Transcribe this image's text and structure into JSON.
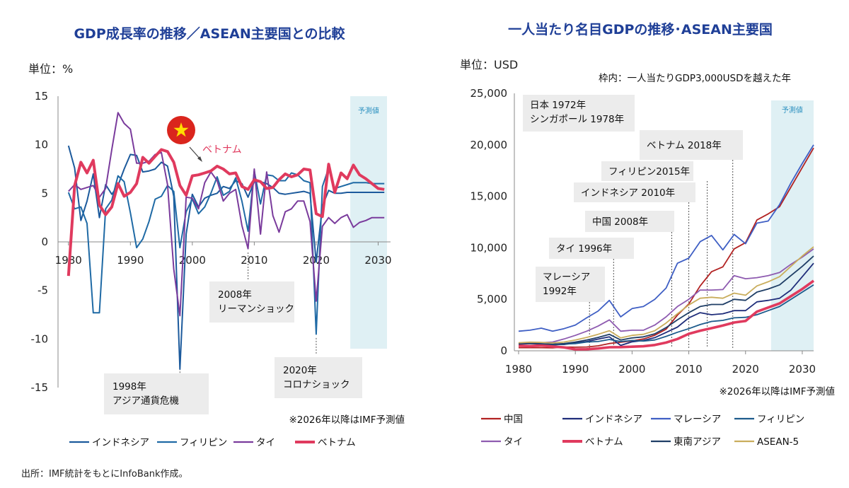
{
  "source": "出所：IMF統計をもとにInfoBank作成。",
  "chart_data": [
    {
      "type": "line",
      "title": "GDP成長率の推移／ASEAN主要国との比較",
      "unit_label": "単位：%",
      "forecast_label": "予測値",
      "forecast_from": 2025.5,
      "note": "※2026年以降はIMF予測値",
      "x_ticks": [
        1980,
        1990,
        2000,
        2010,
        2020,
        2030
      ],
      "y_ticks": [
        15,
        10,
        5,
        0,
        -5,
        -10,
        -15
      ],
      "ylim": [
        -15,
        15
      ],
      "xlim": [
        1979,
        2032
      ],
      "callout_label": "ベトナム",
      "annotations": [
        {
          "text_lines": [
            "1998年",
            "アジア通貨危機"
          ],
          "year": 1998
        },
        {
          "text_lines": [
            "2008年",
            "リーマンショック"
          ],
          "year": 2009
        },
        {
          "text_lines": [
            "2020年",
            "コロナショック"
          ],
          "year": 2020
        }
      ],
      "colors": {
        "indonesia": "#1c5a9c",
        "philippines": "#1f6aa5",
        "thailand": "#7a3b9c",
        "vietnam": "#e03a5e",
        "forecast": "#dff0f4",
        "flag": "#da251d",
        "star": "#ffde00"
      },
      "x": [
        1980,
        1981,
        1982,
        1983,
        1984,
        1985,
        1986,
        1987,
        1988,
        1989,
        1990,
        1991,
        1992,
        1993,
        1994,
        1995,
        1996,
        1997,
        1998,
        1999,
        2000,
        2001,
        2002,
        2003,
        2004,
        2005,
        2006,
        2007,
        2008,
        2009,
        2010,
        2011,
        2012,
        2013,
        2014,
        2015,
        2016,
        2017,
        2018,
        2019,
        2020,
        2021,
        2022,
        2023,
        2024,
        2025,
        2026,
        2027,
        2028,
        2029,
        2030,
        2031
      ],
      "series": [
        {
          "name": "インドネシア",
          "key": "indonesia",
          "values": [
            9.9,
            7.6,
            2.2,
            4.2,
            7.0,
            2.5,
            5.9,
            4.9,
            5.8,
            7.5,
            9.0,
            8.9,
            7.2,
            7.3,
            7.5,
            8.2,
            7.8,
            4.7,
            -13.1,
            0.8,
            4.9,
            3.6,
            4.5,
            4.8,
            5.0,
            5.7,
            5.5,
            6.3,
            6.0,
            4.6,
            6.2,
            6.2,
            6.0,
            5.6,
            5.0,
            4.9,
            5.0,
            5.1,
            5.2,
            5.0,
            -2.1,
            3.7,
            5.3,
            5.0,
            5.0,
            5.1,
            5.1,
            5.1,
            5.1,
            5.1,
            5.1,
            5.1
          ]
        },
        {
          "name": "フィリピン",
          "key": "philippines",
          "values": [
            5.1,
            3.4,
            3.6,
            1.9,
            -7.3,
            -7.3,
            3.4,
            4.3,
            6.8,
            6.2,
            3.0,
            -0.6,
            0.3,
            2.1,
            4.4,
            4.7,
            5.8,
            5.2,
            -0.6,
            3.1,
            4.4,
            2.9,
            3.6,
            5.0,
            6.7,
            4.8,
            5.2,
            6.6,
            4.2,
            1.1,
            7.3,
            3.9,
            6.9,
            6.8,
            6.3,
            6.3,
            7.1,
            6.9,
            6.3,
            6.1,
            -9.5,
            5.7,
            7.6,
            5.5,
            5.7,
            5.9,
            6.1,
            6.1,
            6.1,
            6.0,
            6.0,
            6.0
          ]
        },
        {
          "name": "タイ",
          "key": "thailand",
          "values": [
            5.2,
            5.9,
            5.4,
            5.6,
            5.8,
            4.6,
            5.5,
            9.5,
            13.3,
            12.2,
            11.6,
            8.1,
            8.1,
            8.3,
            9.0,
            9.2,
            5.9,
            -2.8,
            -7.6,
            4.6,
            4.5,
            3.4,
            6.1,
            7.2,
            6.3,
            4.2,
            5.0,
            5.4,
            1.7,
            -0.7,
            7.5,
            0.8,
            7.2,
            2.7,
            1.0,
            3.1,
            3.4,
            4.2,
            4.2,
            2.1,
            -6.1,
            1.6,
            2.5,
            1.9,
            2.5,
            2.8,
            1.5,
            2.0,
            2.2,
            2.5,
            2.5,
            2.5
          ]
        },
        {
          "name": "ベトナム",
          "key": "vietnam",
          "values": [
            -3.5,
            5.8,
            8.2,
            7.1,
            8.4,
            3.8,
            2.8,
            3.6,
            6.0,
            4.7,
            5.1,
            6.0,
            8.7,
            8.1,
            8.8,
            9.5,
            9.3,
            8.2,
            5.8,
            4.8,
            6.8,
            6.9,
            7.1,
            7.3,
            7.8,
            7.5,
            7.0,
            7.1,
            5.7,
            5.4,
            6.4,
            6.2,
            5.5,
            5.6,
            6.4,
            7.0,
            6.7,
            6.9,
            7.5,
            7.4,
            2.9,
            2.6,
            8.0,
            5.1,
            7.1,
            6.5,
            7.9,
            6.9,
            6.5,
            6.0,
            5.5,
            5.4
          ]
        }
      ]
    },
    {
      "type": "line",
      "title": "一人当たり名目GDPの推移･ASEAN主要国",
      "unit_label": "単位：USD",
      "subtitle": "枠内：一人当たりGDP3,000USDを越えた年",
      "forecast_label": "予測値",
      "forecast_from": 2024.5,
      "note": "※2026年以降はIMF予測値",
      "x_ticks": [
        1980,
        1990,
        2000,
        2010,
        2020,
        2030
      ],
      "y_ticks": [
        25000,
        20000,
        15000,
        10000,
        5000,
        0
      ],
      "y_tick_labels": [
        "25,000",
        "20,000",
        "15,000",
        "10,000",
        "5,000",
        "0"
      ],
      "ylim": [
        0,
        25000
      ],
      "xlim": [
        1980,
        2032
      ],
      "annotations": [
        {
          "text_lines": [
            "日本 1972年",
            "シンガポール 1978年"
          ],
          "year": null
        },
        {
          "text_lines": [
            "ベトナム 2018年"
          ],
          "year": 2017
        },
        {
          "text_lines": [
            "フィリピン2015年"
          ],
          "year": 2013
        },
        {
          "text_lines": [
            "インドネシア 2010年"
          ],
          "year": 2010
        },
        {
          "text_lines": [
            "中国 2008年"
          ],
          "year": 2006
        },
        {
          "text_lines": [
            "タイ 1996年"
          ],
          "year": 1996
        },
        {
          "text_lines": [
            "マレーシア",
            "1992年"
          ],
          "year": 1992
        }
      ],
      "colors": {
        "china": "#b22222",
        "indonesia": "#1f2d7a",
        "malaysia": "#3f5fc4",
        "philippines": "#1d5b8c",
        "thailand": "#8e5bb0",
        "vietnam": "#e03a5e",
        "sea": "#1f3e66",
        "asean5": "#c9ad5c",
        "forecast": "#dff0f4"
      },
      "x": [
        1980,
        1982,
        1984,
        1986,
        1988,
        1990,
        1992,
        1994,
        1996,
        1998,
        2000,
        2002,
        2004,
        2006,
        2008,
        2010,
        2012,
        2014,
        2016,
        2018,
        2020,
        2022,
        2024,
        2026,
        2028,
        2030,
        2032
      ],
      "series": [
        {
          "name": "中国",
          "key": "china",
          "values": [
            300,
            300,
            300,
            290,
            370,
            350,
            370,
            480,
            710,
            830,
            960,
            1150,
            1510,
            2100,
            3470,
            4550,
            6300,
            7680,
            8150,
            9900,
            10500,
            12700,
            13300,
            14000,
            15900,
            17800,
            19700
          ]
        },
        {
          "name": "インドネシア",
          "key": "indonesia",
          "values": [
            670,
            720,
            660,
            600,
            610,
            770,
            900,
            1130,
            1350,
            520,
            870,
            1000,
            1280,
            1780,
            2300,
            3200,
            3700,
            3500,
            3600,
            3900,
            3900,
            4750,
            4900,
            5100,
            5900,
            7200,
            8500
          ]
        },
        {
          "name": "マレーシア",
          "key": "malaysia",
          "values": [
            1900,
            2000,
            2200,
            1900,
            2150,
            2500,
            3200,
            3850,
            4900,
            3300,
            4100,
            4300,
            5000,
            6100,
            8500,
            9000,
            10600,
            11200,
            9800,
            11300,
            10400,
            12400,
            12600,
            14200,
            16300,
            18200,
            20000
          ]
        },
        {
          "name": "フィリピン",
          "key": "philippines",
          "values": [
            720,
            770,
            610,
            560,
            650,
            700,
            850,
            900,
            1100,
            900,
            1000,
            950,
            1050,
            1400,
            1800,
            2150,
            2550,
            2850,
            2950,
            3200,
            3250,
            3500,
            3900,
            4300,
            5000,
            5700,
            6400
          ]
        },
        {
          "name": "タイ",
          "key": "thailand",
          "values": [
            700,
            750,
            790,
            850,
            1150,
            1500,
            1900,
            2400,
            3000,
            1900,
            2000,
            2000,
            2500,
            3300,
            4300,
            5000,
            5900,
            5900,
            5950,
            7300,
            7000,
            7100,
            7300,
            7600,
            8400,
            9100,
            9900
          ]
        },
        {
          "name": "ベトナム",
          "key": "vietnam",
          "values": [
            500,
            450,
            520,
            420,
            330,
            140,
            150,
            230,
            340,
            360,
            400,
            440,
            560,
            800,
            1150,
            1650,
            1950,
            2200,
            2450,
            2750,
            2900,
            3800,
            4200,
            4600,
            5300,
            6000,
            6800
          ]
        },
        {
          "name": "東南アジア",
          "key": "sea",
          "values": [
            650,
            700,
            680,
            640,
            700,
            850,
            1050,
            1300,
            1600,
            1050,
            1250,
            1350,
            1650,
            2250,
            3000,
            3700,
            4300,
            4500,
            4500,
            5000,
            4900,
            5700,
            6000,
            6400,
            7300,
            8200,
            9200
          ]
        },
        {
          "name": "ASEAN-5",
          "key": "asean5",
          "values": [
            780,
            840,
            820,
            760,
            850,
            1050,
            1300,
            1600,
            1950,
            1250,
            1500,
            1600,
            1950,
            2700,
            3600,
            4450,
            5100,
            5200,
            5100,
            5600,
            5400,
            6300,
            6700,
            7200,
            8200,
            9200,
            10100
          ]
        }
      ]
    }
  ]
}
